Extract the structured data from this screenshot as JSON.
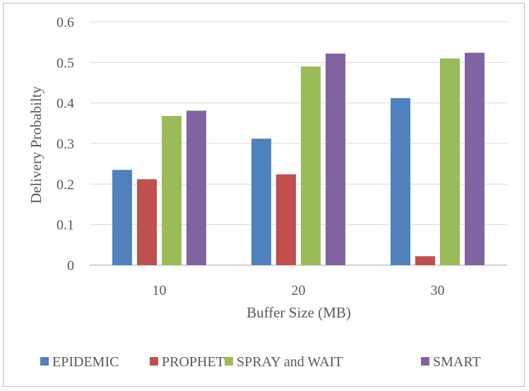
{
  "chart_data": {
    "type": "bar",
    "title": "",
    "xlabel": "Buffer Size (MB)",
    "ylabel": "Delivery Probabilty",
    "categories": [
      "10",
      "20",
      "30"
    ],
    "ylim": [
      0,
      0.6
    ],
    "yticks": [
      "0",
      "0.1",
      "0.2",
      "0.3",
      "0.4",
      "0.5",
      "0.6"
    ],
    "grid": true,
    "legend_position": "bottom",
    "series": [
      {
        "name": "EPIDEMIC",
        "color": "#4f81bd",
        "values": [
          0.235,
          0.312,
          0.412
        ]
      },
      {
        "name": "PROPHET",
        "color": "#c0504d",
        "values": [
          0.212,
          0.224,
          0.022
        ]
      },
      {
        "name": "SPRAY and WAIT",
        "color": "#9bbb59",
        "values": [
          0.368,
          0.49,
          0.51
        ]
      },
      {
        "name": "SMART",
        "color": "#8064a2",
        "values": [
          0.381,
          0.522,
          0.524
        ]
      }
    ]
  }
}
